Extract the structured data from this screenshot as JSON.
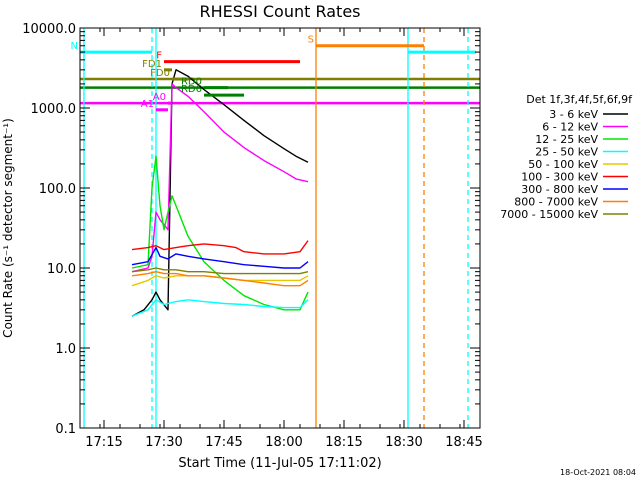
{
  "chart_data": {
    "type": "line",
    "title": "RHESSI Count Rates",
    "xlabel": "Start Time (11-Jul-05 17:11:02)",
    "ylabel": "Count Rate (s⁻¹ detector segment⁻¹)",
    "xlim": [
      "17:09",
      "18:49"
    ],
    "ylim": [
      0.1,
      10000
    ],
    "yscale": "log",
    "x_ticks": [
      "17:15",
      "17:30",
      "17:45",
      "18:00",
      "18:15",
      "18:30",
      "18:45"
    ],
    "y_ticks": [
      "0.1",
      "1.0",
      "10.0",
      "100.0",
      "1000.0",
      "10000.0"
    ],
    "legend_title": "Det 1f,3f,4f,5f,6f,9f",
    "legend_position": "right",
    "timestamp": "18-Oct-2021 08:04",
    "series": [
      {
        "name": "3 - 6 keV",
        "color": "#000000",
        "points": [
          [
            "17:22",
            2.5
          ],
          [
            "17:25",
            3
          ],
          [
            "17:27",
            4
          ],
          [
            "17:28",
            5
          ],
          [
            "17:29",
            4
          ],
          [
            "17:31",
            3
          ],
          [
            "17:32",
            2000
          ],
          [
            "17:33",
            3000
          ],
          [
            "17:36",
            2500
          ],
          [
            "17:40",
            1700
          ],
          [
            "17:45",
            1100
          ],
          [
            "17:50",
            700
          ],
          [
            "17:55",
            450
          ],
          [
            "18:00",
            310
          ],
          [
            "18:03",
            250
          ],
          [
            "18:06",
            210
          ]
        ]
      },
      {
        "name": "6 - 12 keV",
        "color": "#ff00ff",
        "points": [
          [
            "17:22",
            9
          ],
          [
            "17:26",
            10
          ],
          [
            "17:27",
            14
          ],
          [
            "17:28",
            50
          ],
          [
            "17:29",
            40
          ],
          [
            "17:30",
            35
          ],
          [
            "17:31",
            30
          ],
          [
            "17:32",
            2000
          ],
          [
            "17:33",
            1800
          ],
          [
            "17:36",
            1400
          ],
          [
            "17:40",
            900
          ],
          [
            "17:45",
            500
          ],
          [
            "17:50",
            320
          ],
          [
            "17:55",
            220
          ],
          [
            "18:00",
            160
          ],
          [
            "18:03",
            130
          ],
          [
            "18:06",
            120
          ]
        ]
      },
      {
        "name": "12 - 25 keV",
        "color": "#00e600",
        "points": [
          [
            "17:22",
            10
          ],
          [
            "17:26",
            11
          ],
          [
            "17:27",
            100
          ],
          [
            "17:28",
            250
          ],
          [
            "17:29",
            60
          ],
          [
            "17:30",
            30
          ],
          [
            "17:31",
            50
          ],
          [
            "17:32",
            80
          ],
          [
            "17:33",
            60
          ],
          [
            "17:36",
            25
          ],
          [
            "17:40",
            12
          ],
          [
            "17:45",
            7
          ],
          [
            "17:50",
            4.5
          ],
          [
            "17:55",
            3.5
          ],
          [
            "18:00",
            3
          ],
          [
            "18:04",
            3
          ],
          [
            "18:06",
            5
          ]
        ]
      },
      {
        "name": "25 - 50 keV",
        "color": "#00ffff",
        "points": [
          [
            "17:22",
            2.5
          ],
          [
            "17:26",
            3
          ],
          [
            "17:28",
            4
          ],
          [
            "17:30",
            3.5
          ],
          [
            "17:33",
            3.8
          ],
          [
            "17:36",
            4
          ],
          [
            "17:40",
            3.8
          ],
          [
            "17:45",
            3.6
          ],
          [
            "17:50",
            3.5
          ],
          [
            "17:55",
            3.3
          ],
          [
            "18:00",
            3.2
          ],
          [
            "18:04",
            3.2
          ],
          [
            "18:06",
            4
          ]
        ]
      },
      {
        "name": "50 - 100 keV",
        "color": "#e6c800",
        "points": [
          [
            "17:22",
            6
          ],
          [
            "17:26",
            7
          ],
          [
            "17:28",
            8
          ],
          [
            "17:30",
            7.5
          ],
          [
            "17:33",
            8
          ],
          [
            "17:36",
            8
          ],
          [
            "17:40",
            8
          ],
          [
            "17:45",
            7.5
          ],
          [
            "17:50",
            7
          ],
          [
            "17:55",
            7
          ],
          [
            "18:00",
            7
          ],
          [
            "18:04",
            7
          ],
          [
            "18:06",
            8
          ]
        ]
      },
      {
        "name": "100 - 300 keV",
        "color": "#ff0000",
        "points": [
          [
            "17:22",
            17
          ],
          [
            "17:26",
            18
          ],
          [
            "17:28",
            19
          ],
          [
            "17:30",
            17
          ],
          [
            "17:33",
            18
          ],
          [
            "17:36",
            19
          ],
          [
            "17:40",
            20
          ],
          [
            "17:45",
            19
          ],
          [
            "17:48",
            18
          ],
          [
            "17:50",
            16
          ],
          [
            "17:55",
            15
          ],
          [
            "18:00",
            15
          ],
          [
            "18:04",
            16
          ],
          [
            "18:06",
            22
          ]
        ]
      },
      {
        "name": "300 - 800 keV",
        "color": "#0000ff",
        "points": [
          [
            "17:22",
            11
          ],
          [
            "17:26",
            12
          ],
          [
            "17:28",
            18
          ],
          [
            "17:29",
            14
          ],
          [
            "17:31",
            13
          ],
          [
            "17:33",
            15
          ],
          [
            "17:36",
            14
          ],
          [
            "17:40",
            13
          ],
          [
            "17:45",
            12
          ],
          [
            "17:50",
            11
          ],
          [
            "17:55",
            10.5
          ],
          [
            "18:00",
            10
          ],
          [
            "18:04",
            10
          ],
          [
            "18:06",
            12
          ]
        ]
      },
      {
        "name": "800 - 7000 keV",
        "color": "#ff7f00",
        "points": [
          [
            "17:22",
            8
          ],
          [
            "17:26",
            8.5
          ],
          [
            "17:28",
            9
          ],
          [
            "17:30",
            8.5
          ],
          [
            "17:33",
            8.5
          ],
          [
            "17:36",
            8
          ],
          [
            "17:40",
            8
          ],
          [
            "17:45",
            7.5
          ],
          [
            "17:50",
            7
          ],
          [
            "17:55",
            6.5
          ],
          [
            "18:00",
            6
          ],
          [
            "18:04",
            6
          ],
          [
            "18:06",
            7
          ]
        ]
      },
      {
        "name": "7000 - 15000 keV",
        "color": "#808000",
        "points": [
          [
            "17:22",
            9
          ],
          [
            "17:26",
            9.5
          ],
          [
            "17:28",
            10
          ],
          [
            "17:30",
            9.5
          ],
          [
            "17:33",
            9.5
          ],
          [
            "17:36",
            9
          ],
          [
            "17:40",
            9
          ],
          [
            "17:45",
            8.5
          ],
          [
            "17:50",
            8.5
          ],
          [
            "17:55",
            8.5
          ],
          [
            "18:00",
            8.5
          ],
          [
            "18:04",
            8.5
          ],
          [
            "18:06",
            9
          ]
        ]
      }
    ],
    "flags": [
      {
        "label": "N",
        "color": "#00ffff",
        "segments": [
          [
            "17:09",
            5000,
            "17:27",
            5000
          ],
          [
            "18:31",
            5000,
            "18:48",
            5000
          ]
        ]
      },
      {
        "label": "F",
        "color": "#ff0000",
        "segments": [
          [
            "17:30",
            3800,
            "18:04",
            3800
          ]
        ]
      },
      {
        "label": "FD1",
        "color": "#808000",
        "segments": [
          [
            "17:30",
            3000,
            "17:32",
            3000
          ]
        ]
      },
      {
        "label": "FD0",
        "color": "#808000",
        "segments": [
          [
            "17:32",
            2300,
            "17:36",
            2300
          ]
        ]
      },
      {
        "label": "RD0",
        "color": "#008000",
        "segments": [
          [
            "17:40",
            1800,
            "17:46",
            1800
          ]
        ]
      },
      {
        "label": "RD6",
        "color": "#008000",
        "segments": [
          [
            "17:40",
            1450,
            "17:50",
            1450
          ]
        ]
      },
      {
        "label": "S",
        "color": "#ff7f00",
        "segments": [
          [
            "18:08",
            6000,
            "18:35",
            6000
          ]
        ]
      },
      {
        "label": "A1",
        "color": "#ff00ff",
        "segments": [
          [
            "17:28",
            950,
            "17:31",
            950
          ]
        ]
      },
      {
        "label": "A0",
        "color": "#ff00ff",
        "segments": [
          [
            "17:31",
            1150,
            "17:32",
            1150
          ]
        ]
      }
    ],
    "flag_bands": [
      {
        "color": "#808000",
        "y": 2300
      },
      {
        "color": "#008000",
        "y": 1800
      },
      {
        "color": "#ff00ff",
        "y": 1150
      }
    ],
    "vertical_lines": [
      {
        "x": "17:10",
        "color": "#00ffff",
        "style": "solid"
      },
      {
        "x": "17:27",
        "color": "#00ffff",
        "style": "dashed"
      },
      {
        "x": "17:28",
        "color": "#00ffff",
        "style": "solid"
      },
      {
        "x": "18:08",
        "color": "#ff7f00",
        "style": "solid"
      },
      {
        "x": "18:31",
        "color": "#00ffff",
        "style": "solid"
      },
      {
        "x": "18:35",
        "color": "#ff7f00",
        "style": "dashed"
      },
      {
        "x": "18:46",
        "color": "#00ffff",
        "style": "dashed"
      }
    ]
  }
}
